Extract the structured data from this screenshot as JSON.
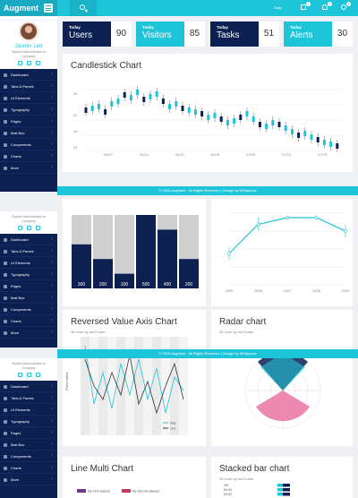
{
  "header": {
    "brand": "Augment",
    "user": "Sally",
    "icons": [
      {
        "icon": "mail-icon",
        "badge": "3"
      },
      {
        "icon": "bell-icon",
        "badge": "9"
      },
      {
        "icon": "gear-icon",
        "badge": "4"
      }
    ]
  },
  "sidebar": {
    "name": "Jasmin Leo",
    "role": "System Administrator in Company",
    "items": [
      "Dashboard",
      "Tabs & Panels",
      "UI Elements",
      "Typography",
      "Pages",
      "Mail Box",
      "Components",
      "Charts",
      "More"
    ]
  },
  "stats": [
    {
      "kicker": "Today",
      "label": "Users",
      "value": "90",
      "color": "#0c2152"
    },
    {
      "kicker": "Today",
      "label": "Visitors",
      "value": "85",
      "color": "#1ec4d8"
    },
    {
      "kicker": "Today",
      "label": "Tasks",
      "value": "51",
      "color": "#0c2152"
    },
    {
      "kicker": "Today",
      "label": "Alerts",
      "value": "30",
      "color": "#1ec4d8"
    }
  ],
  "footer": "© 2016 Augment . All Rights Reserved | Design by W3layouts",
  "panels": {
    "candlestick": {
      "title": "Candlestick Chart",
      "y_ticks": [
        "36",
        "32",
        "28",
        "24"
      ],
      "x_ticks": [
        "06/07",
        "06/14",
        "06/21",
        "06/28",
        "07/05",
        "07/12",
        "07/19"
      ]
    },
    "reversed": {
      "title": "Reversed Value Axis Chart",
      "subtitle": "36 chart by amCharts",
      "y_label": "Place taken",
      "legend": [
        "Italy",
        "Uno"
      ]
    },
    "radar": {
      "title": "Radar chart",
      "subtitle": "36 chart by amCharts"
    },
    "line_multi": {
      "title": "Line Multi Chart",
      "legend": [
        "My First dataset",
        "My Second dataset"
      ]
    },
    "stacked": {
      "title": "Stacked bar chart",
      "subtitle": "36 chart by amCharts",
      "rows": [
        "39+",
        "60-54",
        "50-54"
      ]
    }
  },
  "chart_data": [
    {
      "type": "bar",
      "stacked": true,
      "categories": [
        "1",
        "2",
        "3",
        "4",
        "5",
        "6"
      ],
      "values": [
        300,
        200,
        100,
        500,
        400,
        200
      ],
      "series": [
        {
          "values": [
            300,
            200,
            100,
            500,
            400,
            200
          ],
          "color": "#0c2152"
        },
        {
          "values": [
            200,
            300,
            400,
            0,
            100,
            300
          ],
          "color": "#cfcfcf"
        }
      ],
      "ylim": [
        0,
        500
      ]
    },
    {
      "type": "line",
      "x": [
        "2005",
        "2006",
        "2007",
        "2008",
        "2009"
      ],
      "values": [
        14,
        27,
        30,
        30,
        24
      ],
      "error_bars": [
        3,
        3,
        1,
        1,
        3
      ],
      "ylim": [
        0,
        32
      ]
    }
  ]
}
